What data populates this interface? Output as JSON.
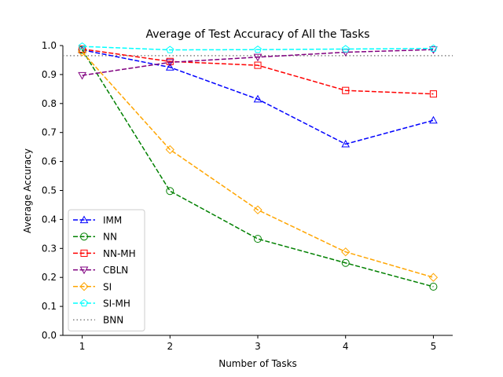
{
  "chart_data": {
    "type": "line",
    "title": "Average of Test Accuracy of All the Tasks",
    "xlabel": "Number of Tasks",
    "ylabel": "Average Accuracy",
    "x": [
      1,
      2,
      3,
      4,
      5
    ],
    "xlim": [
      0.78,
      5.22
    ],
    "ylim": [
      0.0,
      1.0
    ],
    "xticks": [
      "1",
      "2",
      "3",
      "4",
      "5"
    ],
    "yticks": [
      "0.0",
      "0.1",
      "0.2",
      "0.3",
      "0.4",
      "0.5",
      "0.6",
      "0.7",
      "0.8",
      "0.9",
      "1.0"
    ],
    "legend_position": "lower-left",
    "series": [
      {
        "name": "IMM",
        "color": "#0000ff",
        "marker": "triangle-up",
        "values": [
          0.985,
          0.925,
          0.815,
          0.66,
          0.742
        ]
      },
      {
        "name": "NN",
        "color": "#008000",
        "marker": "circle",
        "values": [
          0.985,
          0.498,
          0.333,
          0.25,
          0.168
        ]
      },
      {
        "name": "NN-MH",
        "color": "#ff0000",
        "marker": "square",
        "values": [
          0.988,
          0.945,
          0.932,
          0.845,
          0.833
        ]
      },
      {
        "name": "CBLN",
        "color": "#800080",
        "marker": "triangle-down",
        "values": [
          0.897,
          0.942,
          0.96,
          0.977,
          0.986
        ]
      },
      {
        "name": "SI",
        "color": "#ffa500",
        "marker": "diamond",
        "values": [
          0.978,
          0.641,
          0.433,
          0.288,
          0.2
        ]
      },
      {
        "name": "SI-MH",
        "color": "#00ffff",
        "marker": "pentagon",
        "values": [
          0.997,
          0.985,
          0.986,
          0.988,
          0.99
        ]
      }
    ],
    "reference_lines": [
      {
        "name": "BNN",
        "color": "#808080",
        "style": "dotted",
        "value": 0.965
      }
    ]
  }
}
